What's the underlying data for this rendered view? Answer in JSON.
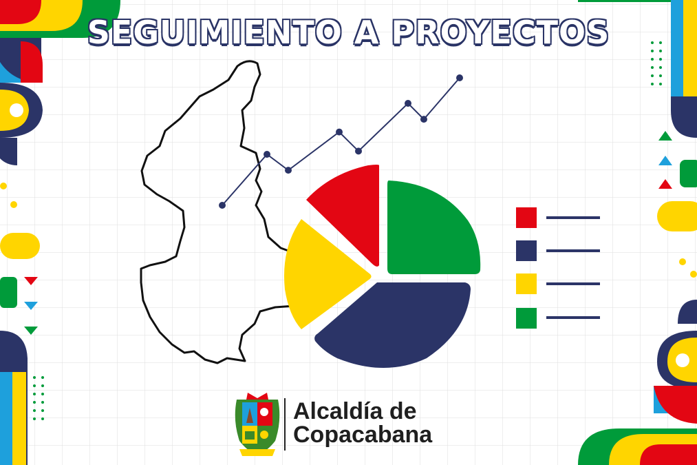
{
  "title": "SEGUIMIENTO A PROYECTOS",
  "logo": {
    "line1": "Alcaldía de",
    "line2": "Copacabana"
  },
  "colors": {
    "red": "#e30613",
    "navy": "#2b3467",
    "yellow": "#ffd500",
    "green": "#009b3a",
    "blue": "#1ea0dc",
    "grid": "#dcdcdc"
  },
  "pie_slices": [
    {
      "name": "red-slice",
      "color": "#e30613",
      "value": 0.2
    },
    {
      "name": "green-slice",
      "color": "#009b3a",
      "value": 0.25
    },
    {
      "name": "navy-slice",
      "color": "#2b3467",
      "value": 0.33
    },
    {
      "name": "yellow-slice",
      "color": "#ffd500",
      "value": 0.22
    }
  ],
  "legend": [
    {
      "color": "#e30613"
    },
    {
      "color": "#2b3467"
    },
    {
      "color": "#ffd500"
    },
    {
      "color": "#009b3a"
    }
  ],
  "line_points": [
    1,
    2.6,
    2.1,
    3.3,
    2.7,
    4.2,
    3.7,
    5
  ]
}
